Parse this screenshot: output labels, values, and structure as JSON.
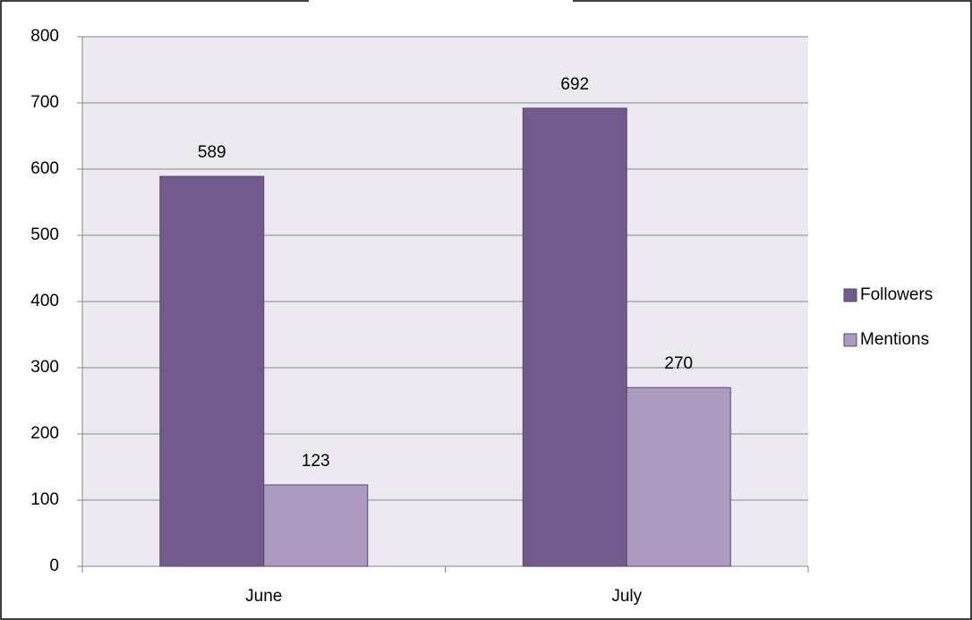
{
  "chart_data": {
    "type": "bar",
    "categories": [
      "June",
      "July"
    ],
    "series": [
      {
        "name": "Followers",
        "color": "#725a8d",
        "values": [
          589,
          692
        ]
      },
      {
        "name": "Mentions",
        "color": "#aa9bbf",
        "values": [
          123,
          270
        ]
      }
    ],
    "ylim": [
      0,
      800
    ],
    "yticks": [
      0,
      100,
      200,
      300,
      400,
      500,
      600,
      700,
      800
    ],
    "grid": true,
    "legend": "right"
  }
}
